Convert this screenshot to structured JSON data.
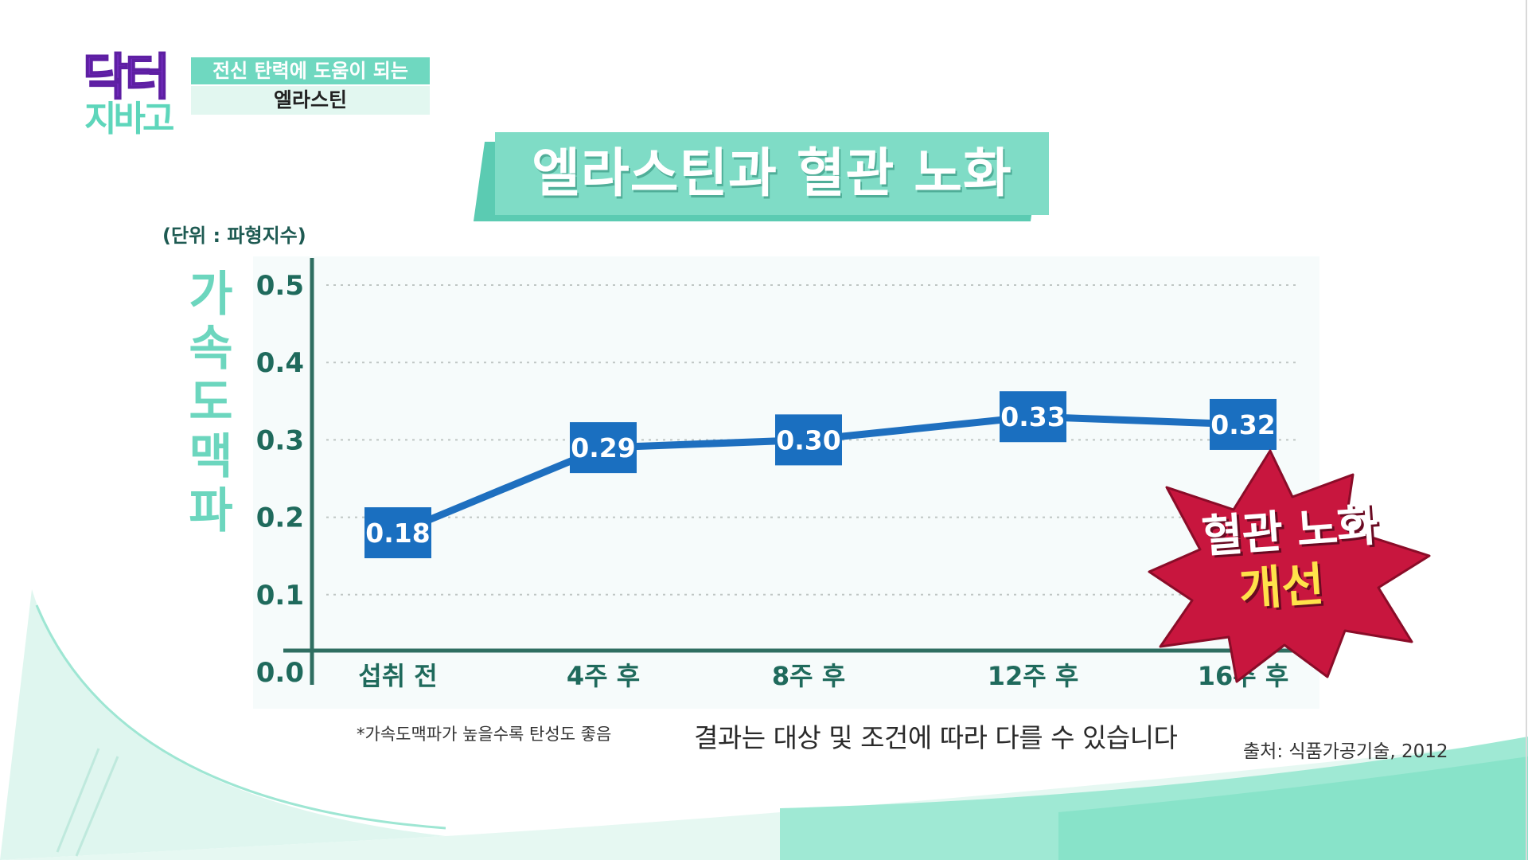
{
  "logo": {
    "top": "닥터",
    "bottom": "지바고"
  },
  "topic": {
    "line1": "전신 탄력에 도움이 되는",
    "line2": "엘라스틴"
  },
  "title": "엘라스틴과 혈관 노화",
  "unit_label": "(단위 : 파형지수)",
  "y_title": "가속도맥파",
  "burst": {
    "line1": "혈관 노화",
    "line2": "개선"
  },
  "notes": {
    "small": "*가속도맥파가 높을수록 탄성도 좋음",
    "main": "결과는 대상 및 조건에 따라 다를 수 있습니다",
    "source": "출처: 식품가공기술, 2012"
  },
  "colors": {
    "line": "#1e6fbf",
    "label_box": "#1a6fc0",
    "axis": "#2f6e61",
    "tick_text": "#1f6a5c",
    "grid": "#bfc6c4",
    "plot_bg": "#f6fbfb",
    "accent_mint": "#7fdcc6",
    "burst": "#c8163e"
  },
  "chart_data": {
    "type": "line",
    "categories": [
      "섭취 전",
      "4주 후",
      "8주 후",
      "12주 후",
      "16주 후"
    ],
    "series": [
      {
        "values": [
          0.18,
          0.29,
          0.3,
          0.33,
          0.32
        ]
      }
    ],
    "data_labels": [
      "0.18",
      "0.29",
      "0.30",
      "0.33",
      "0.32"
    ],
    "ylim": [
      0.0,
      0.5
    ],
    "yticks": [
      0.0,
      0.1,
      0.2,
      0.3,
      0.4,
      0.5
    ],
    "ytick_labels": [
      "0.0",
      "0.1",
      "0.2",
      "0.3",
      "0.4",
      "0.5"
    ],
    "ylabel": "가속도맥파",
    "title": "엘라스틴과 혈관 노화",
    "grid": true
  }
}
